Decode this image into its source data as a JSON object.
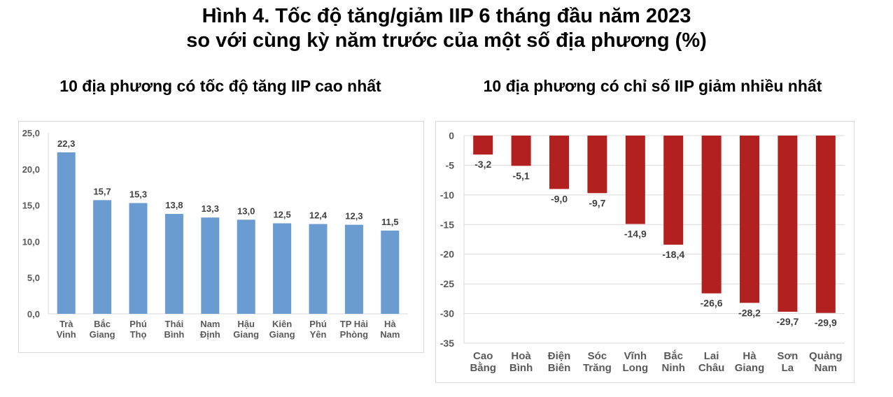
{
  "title_line1": "Hình 4. Tốc độ tăng/giảm IIP 6 tháng đầu năm 2023",
  "title_line2": "so với cùng kỳ năm trước của một số địa phương (%)",
  "chart_data": [
    {
      "type": "bar",
      "title": "10 địa phương có tốc độ tăng IIP cao nhất",
      "categories": [
        [
          "Trà",
          "Vinh"
        ],
        [
          "Bắc",
          "Giang"
        ],
        [
          "Phú",
          "Thọ"
        ],
        [
          "Thái",
          "Bình"
        ],
        [
          "Nam",
          "Định"
        ],
        [
          "Hậu",
          "Giang"
        ],
        [
          "Kiên",
          "Giang"
        ],
        [
          "Phú",
          "Yên"
        ],
        [
          "TP Hải",
          "Phòng"
        ],
        [
          "Hà",
          "Nam"
        ]
      ],
      "values": [
        22.3,
        15.7,
        15.3,
        13.8,
        13.3,
        13.0,
        12.5,
        12.4,
        12.3,
        11.5
      ],
      "value_labels": [
        "22,3",
        "15,7",
        "15,3",
        "13,8",
        "13,3",
        "13,0",
        "12,5",
        "12,4",
        "12,3",
        "11,5"
      ],
      "ylim": [
        0,
        25
      ],
      "yticks": [
        "0,0",
        "5,0",
        "10,0",
        "15,0",
        "20,0",
        "25,0"
      ],
      "color": "#6a9bd1",
      "grid": false
    },
    {
      "type": "bar",
      "title": "10 địa phương có chỉ số IIP giảm nhiều nhất",
      "categories": [
        [
          "Cao",
          "Bằng"
        ],
        [
          "Hoà",
          "Bình"
        ],
        [
          "Điện",
          "Biên"
        ],
        [
          "Sóc",
          "Trăng"
        ],
        [
          "Vĩnh",
          "Long"
        ],
        [
          "Bắc",
          "Ninh"
        ],
        [
          "Lai",
          "Châu"
        ],
        [
          "Hà",
          "Giang"
        ],
        [
          "Sơn",
          "La"
        ],
        [
          "Quảng",
          "Nam"
        ]
      ],
      "values": [
        -3.2,
        -5.1,
        -9.0,
        -9.7,
        -14.9,
        -18.4,
        -26.6,
        -28.2,
        -29.7,
        -29.9
      ],
      "value_labels": [
        "-3,2",
        "-5,1",
        "-9,0",
        "-9,7",
        "-14,9",
        "-18,4",
        "-26,6",
        "-28,2",
        "-29,7",
        "-29,9"
      ],
      "ylim": [
        -35,
        0
      ],
      "yticks": [
        "0",
        "-5",
        "-10",
        "-15",
        "-20",
        "-25",
        "-30",
        "-35"
      ],
      "color": "#b22020",
      "grid": true
    }
  ]
}
